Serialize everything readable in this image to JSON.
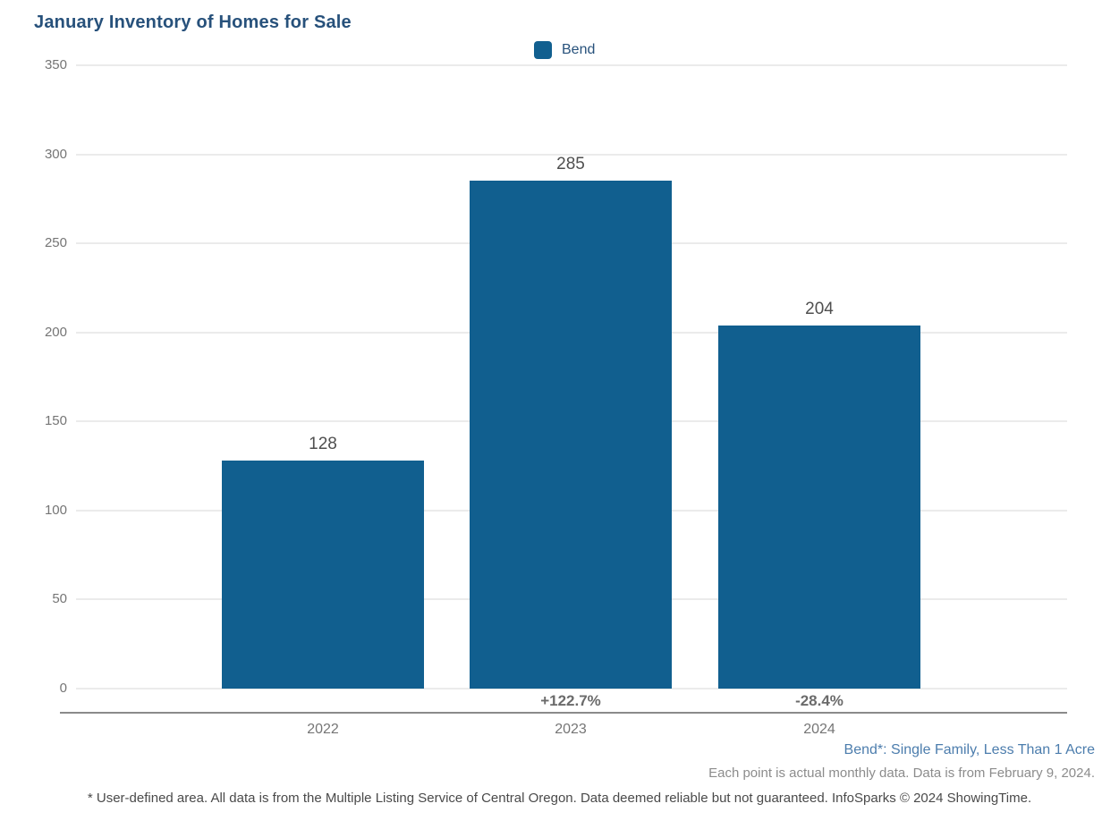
{
  "title": "January Inventory of Homes for Sale",
  "legend": {
    "label": "Bend",
    "swatch_color": "#115F8F"
  },
  "colors": {
    "bar": "#115F8F",
    "title_text": "#27517B",
    "gridline": "#EBEBEB",
    "axis_line": "#8A8A8A",
    "tick_text": "#757575",
    "value_label_text": "#4F4F4F",
    "pct_label_text": "#6B6B6B",
    "series_note_text": "#4C7DAD",
    "data_note_text": "#8C8C8C",
    "footnote_text": "#4A4A4A"
  },
  "chart_data": {
    "type": "bar",
    "title": "January Inventory of Homes for Sale",
    "categories": [
      "2022",
      "2023",
      "2024"
    ],
    "series": [
      {
        "name": "Bend",
        "values": [
          128,
          285,
          204
        ]
      }
    ],
    "value_labels": [
      "128",
      "285",
      "204"
    ],
    "pct_change_labels": [
      "",
      "+122.7%",
      "-28.4%"
    ],
    "xlabel": "",
    "ylabel": "",
    "ylim": [
      0,
      350
    ],
    "yticks": [
      0,
      50,
      100,
      150,
      200,
      250,
      300,
      350
    ],
    "grid": true,
    "legend_position": "top-center"
  },
  "annotations": {
    "series_note": "Bend*: Single Family, Less Than 1 Acre",
    "data_note": "Each point is actual monthly data. Data is from February 9, 2024.",
    "footnote": "* User-defined area. All data is from the Multiple Listing Service of Central Oregon. Data deemed reliable but not guaranteed. InfoSparks © 2024 ShowingTime."
  }
}
